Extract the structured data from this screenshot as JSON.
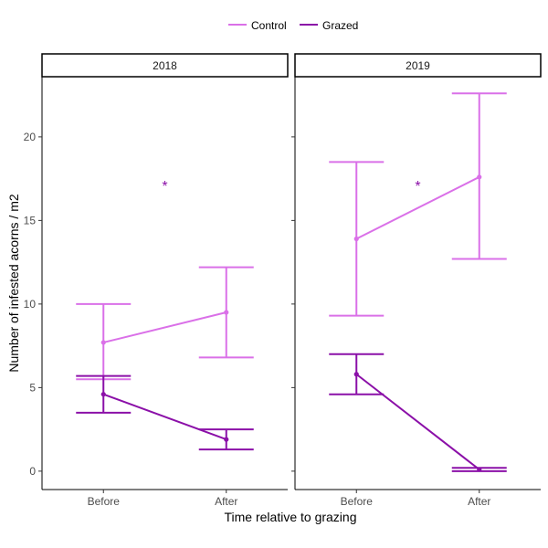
{
  "colors": {
    "control": "#DA70E8",
    "grazed": "#8B10A8",
    "annotation": "#8B10A8"
  },
  "chart_data": {
    "type": "line",
    "xlabel": "Time relative to grazing",
    "ylabel": "Number of infested acorns / m2",
    "categories": [
      "Before",
      "After"
    ],
    "ylim": [
      -1.1,
      23.6
    ],
    "yticks": [
      0,
      5,
      10,
      15,
      20
    ],
    "legend": {
      "position": "top",
      "entries": [
        "Control",
        "Grazed"
      ]
    },
    "grid": false,
    "panels": [
      {
        "title": "2018",
        "series": [
          {
            "name": "Control",
            "values": [
              7.7,
              9.5
            ],
            "lower": [
              5.5,
              6.8
            ],
            "upper": [
              10.0,
              12.2
            ]
          },
          {
            "name": "Grazed",
            "values": [
              4.6,
              1.9
            ],
            "lower": [
              3.5,
              1.3
            ],
            "upper": [
              5.7,
              2.5
            ]
          }
        ],
        "annotation": {
          "text": "*",
          "x": 1.5,
          "y": 17.2
        }
      },
      {
        "title": "2019",
        "series": [
          {
            "name": "Control",
            "values": [
              13.9,
              17.6
            ],
            "lower": [
              9.3,
              12.7
            ],
            "upper": [
              18.5,
              22.6
            ]
          },
          {
            "name": "Grazed",
            "values": [
              5.8,
              0.1
            ],
            "lower": [
              4.6,
              0.0
            ],
            "upper": [
              7.0,
              0.2
            ]
          }
        ],
        "annotation": {
          "text": "*",
          "x": 1.5,
          "y": 17.2
        }
      }
    ]
  }
}
